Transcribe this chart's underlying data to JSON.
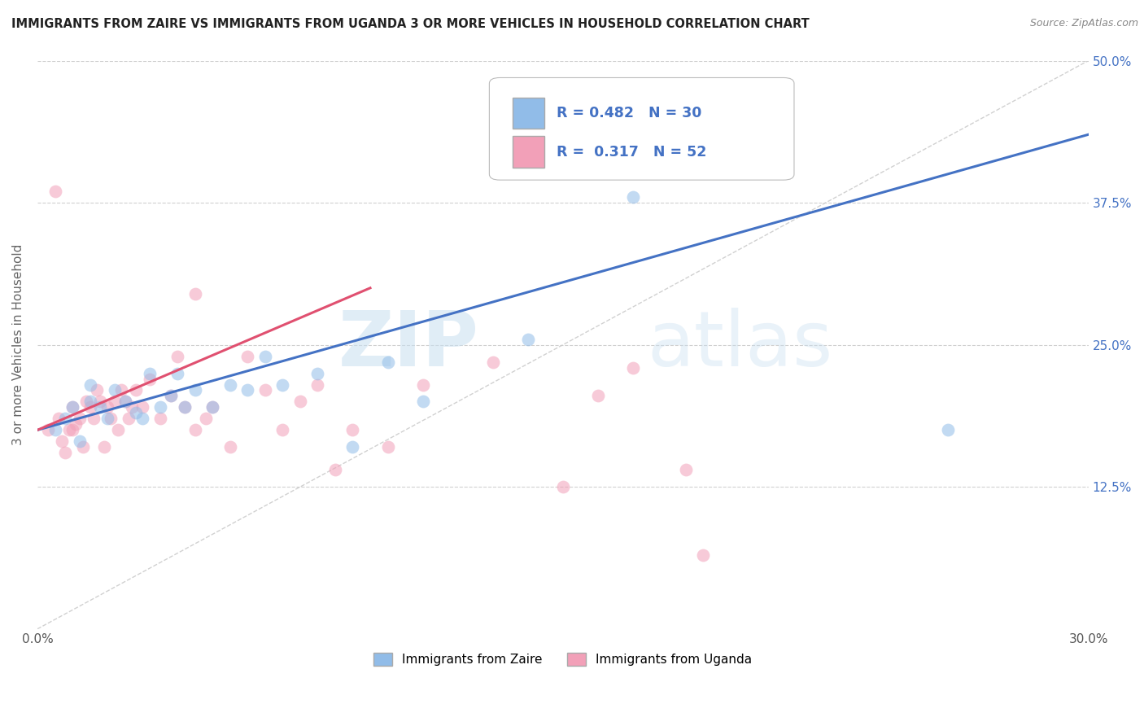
{
  "title": "IMMIGRANTS FROM ZAIRE VS IMMIGRANTS FROM UGANDA 3 OR MORE VEHICLES IN HOUSEHOLD CORRELATION CHART",
  "source": "Source: ZipAtlas.com",
  "ylabel": "3 or more Vehicles in Household",
  "legend_label_blue": "Immigrants from Zaire",
  "legend_label_pink": "Immigrants from Uganda",
  "R_blue": 0.482,
  "N_blue": 30,
  "R_pink": 0.317,
  "N_pink": 52,
  "color_blue": "#91bce8",
  "color_pink": "#f2a0b8",
  "line_color_blue": "#4472c4",
  "line_color_pink": "#e05070",
  "xmin": 0.0,
  "xmax": 0.3,
  "ymin": 0.0,
  "ymax": 0.5,
  "x_ticks": [
    0.0,
    0.05,
    0.1,
    0.15,
    0.2,
    0.25,
    0.3
  ],
  "y_ticks_right": [
    0.0,
    0.125,
    0.25,
    0.375,
    0.5
  ],
  "y_tick_labels_right": [
    "",
    "12.5%",
    "25.0%",
    "37.5%",
    "50.0%"
  ],
  "watermark_zip": "ZIP",
  "watermark_atlas": "atlas",
  "background_color": "#ffffff",
  "grid_color": "#d0d0d0",
  "scatter_alpha": 0.55,
  "scatter_size": 130,
  "blue_x": [
    0.005,
    0.008,
    0.01,
    0.012,
    0.015,
    0.015,
    0.018,
    0.02,
    0.022,
    0.025,
    0.028,
    0.03,
    0.032,
    0.035,
    0.038,
    0.04,
    0.042,
    0.045,
    0.05,
    0.055,
    0.06,
    0.065,
    0.07,
    0.08,
    0.09,
    0.1,
    0.11,
    0.14,
    0.17,
    0.26
  ],
  "blue_y": [
    0.175,
    0.185,
    0.195,
    0.165,
    0.2,
    0.215,
    0.195,
    0.185,
    0.21,
    0.2,
    0.19,
    0.185,
    0.225,
    0.195,
    0.205,
    0.225,
    0.195,
    0.21,
    0.195,
    0.215,
    0.21,
    0.24,
    0.215,
    0.225,
    0.16,
    0.235,
    0.2,
    0.255,
    0.38,
    0.175
  ],
  "pink_x": [
    0.003,
    0.005,
    0.006,
    0.007,
    0.008,
    0.009,
    0.01,
    0.01,
    0.011,
    0.012,
    0.013,
    0.014,
    0.015,
    0.016,
    0.017,
    0.018,
    0.019,
    0.02,
    0.021,
    0.022,
    0.023,
    0.024,
    0.025,
    0.026,
    0.027,
    0.028,
    0.03,
    0.032,
    0.035,
    0.038,
    0.04,
    0.042,
    0.045,
    0.048,
    0.05,
    0.055,
    0.06,
    0.065,
    0.07,
    0.075,
    0.08,
    0.085,
    0.09,
    0.1,
    0.11,
    0.13,
    0.15,
    0.16,
    0.17,
    0.185,
    0.19,
    0.045
  ],
  "pink_y": [
    0.175,
    0.385,
    0.185,
    0.165,
    0.155,
    0.175,
    0.195,
    0.175,
    0.18,
    0.185,
    0.16,
    0.2,
    0.195,
    0.185,
    0.21,
    0.2,
    0.16,
    0.195,
    0.185,
    0.2,
    0.175,
    0.21,
    0.2,
    0.185,
    0.195,
    0.21,
    0.195,
    0.22,
    0.185,
    0.205,
    0.24,
    0.195,
    0.175,
    0.185,
    0.195,
    0.16,
    0.24,
    0.21,
    0.175,
    0.2,
    0.215,
    0.14,
    0.175,
    0.16,
    0.215,
    0.235,
    0.125,
    0.205,
    0.23,
    0.14,
    0.065,
    0.295
  ],
  "blue_trend_x0": 0.0,
  "blue_trend_y0": 0.175,
  "blue_trend_x1": 0.3,
  "blue_trend_y1": 0.435,
  "pink_trend_x0": 0.0,
  "pink_trend_y0": 0.175,
  "pink_trend_x1": 0.095,
  "pink_trend_y1": 0.3
}
